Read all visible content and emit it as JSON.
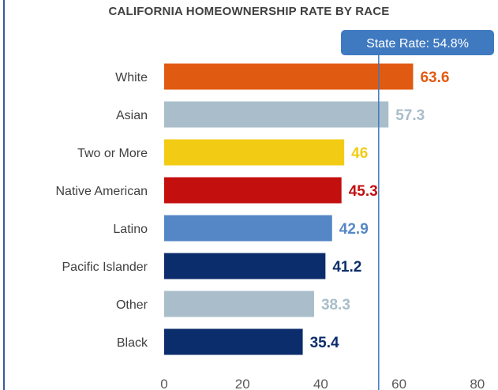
{
  "chart_data": {
    "type": "bar",
    "orientation": "horizontal",
    "title": "CALIFORNIA HOMEOWNERSHIP RATE BY RACE",
    "categories": [
      "White",
      "Asian",
      "Two or More",
      "Native American",
      "Latino",
      "Pacific Islander",
      "Other",
      "Black"
    ],
    "values": [
      63.6,
      57.3,
      46,
      45.3,
      42.9,
      41.2,
      38.3,
      35.4
    ],
    "value_labels": [
      "63.6",
      "57.3",
      "46",
      "45.3",
      "42.9",
      "41.2",
      "38.3",
      "35.4"
    ],
    "bar_colors": [
      "#e15a11",
      "#a9bdca",
      "#f2cc14",
      "#c40f0f",
      "#5587c6",
      "#0c2d6b",
      "#a9bdca",
      "#0c2d6b"
    ],
    "xlim": [
      0,
      80
    ],
    "xticks": [
      0,
      20,
      40,
      60,
      80
    ],
    "grid": false,
    "reference_line": {
      "value": 54.8,
      "label": "State Rate: 54.8%",
      "color": "#3f7ac0"
    }
  }
}
